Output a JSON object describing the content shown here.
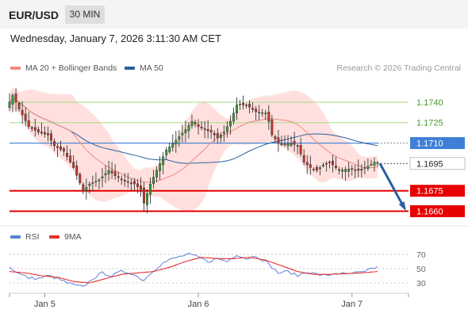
{
  "header": {
    "symbol": "EUR/USD",
    "timeframe": "30 MIN",
    "datetime": "Wednesday, January 7, 2026 3:11:30 AM CET",
    "copyright": "Research © 2026 Trading Central"
  },
  "legend": {
    "ma20": "MA 20 + Bollinger Bands",
    "ma50": "MA 50",
    "rsi": "RSI",
    "ma9": "9MA"
  },
  "colors": {
    "ma20": "#f08a80",
    "ma50": "#2a5fa0",
    "band_fill": "#ffd6d3",
    "up": "#3a9a3a",
    "down": "#c0392b",
    "green_line": "#a9d98a",
    "green_label": "#4a9a2a",
    "blue_line": "#3f7fd6",
    "red_line": "#e60000",
    "rsi": "#5b7fd6",
    "rsi_ma": "#e53030",
    "arrow": "#2a5fa0"
  },
  "chart_data": {
    "type": "candlestick",
    "ylim": [
      1.1651,
      1.1758
    ],
    "x_ticks": [
      {
        "label": "Jan 5",
        "index": 11
      },
      {
        "label": "Jan 6",
        "index": 59
      },
      {
        "label": "Jan 7",
        "index": 107
      }
    ],
    "levels": [
      {
        "value": 1.174,
        "label": "1.1740",
        "style": "green"
      },
      {
        "value": 1.1725,
        "label": "1.1725",
        "style": "green"
      },
      {
        "value": 1.171,
        "label": "1.1710",
        "style": "blue"
      },
      {
        "value": 1.1695,
        "label": "1.1695",
        "style": "current"
      },
      {
        "value": 1.1675,
        "label": "1.1675",
        "style": "red"
      },
      {
        "value": 1.166,
        "label": "1.1660",
        "style": "red"
      }
    ],
    "forecast_arrow": {
      "from": 1.1695,
      "to": 1.1662
    },
    "candle_count": 116,
    "anchors": [
      [
        0,
        1.174
      ],
      [
        1,
        1.1745
      ],
      [
        3,
        1.1735
      ],
      [
        6,
        1.1722
      ],
      [
        9,
        1.1718
      ],
      [
        12,
        1.1716
      ],
      [
        14,
        1.1708
      ],
      [
        17,
        1.1704
      ],
      [
        20,
        1.1692
      ],
      [
        23,
        1.1675
      ],
      [
        25,
        1.168
      ],
      [
        28,
        1.1683
      ],
      [
        31,
        1.169
      ],
      [
        33,
        1.1686
      ],
      [
        36,
        1.1682
      ],
      [
        39,
        1.168
      ],
      [
        41,
        1.1676
      ],
      [
        42,
        1.1666
      ],
      [
        44,
        1.168
      ],
      [
        46,
        1.169
      ],
      [
        49,
        1.1705
      ],
      [
        52,
        1.1712
      ],
      [
        55,
        1.172
      ],
      [
        57,
        1.1726
      ],
      [
        59,
        1.1722
      ],
      [
        61,
        1.172
      ],
      [
        63,
        1.1718
      ],
      [
        65,
        1.1714
      ],
      [
        67,
        1.1718
      ],
      [
        69,
        1.1726
      ],
      [
        71,
        1.1738
      ],
      [
        74,
        1.1738
      ],
      [
        77,
        1.1733
      ],
      [
        80,
        1.1732
      ],
      [
        81,
        1.1726
      ],
      [
        82,
        1.1716
      ],
      [
        84,
        1.171
      ],
      [
        86,
        1.1709
      ],
      [
        88,
        1.171
      ],
      [
        90,
        1.1708
      ],
      [
        92,
        1.1696
      ],
      [
        94,
        1.1692
      ],
      [
        96,
        1.169
      ],
      [
        98,
        1.1694
      ],
      [
        100,
        1.1696
      ],
      [
        103,
        1.169
      ],
      [
        106,
        1.1691
      ],
      [
        109,
        1.169
      ],
      [
        112,
        1.1693
      ],
      [
        114,
        1.1696
      ],
      [
        115,
        1.1695
      ]
    ],
    "rsi": {
      "ylim": [
        20,
        80
      ],
      "ticks": [
        70,
        50,
        30
      ],
      "anchors": [
        [
          0,
          52
        ],
        [
          3,
          43
        ],
        [
          6,
          37
        ],
        [
          9,
          36
        ],
        [
          12,
          40
        ],
        [
          15,
          36
        ],
        [
          18,
          30
        ],
        [
          21,
          26
        ],
        [
          23,
          24
        ],
        [
          26,
          36
        ],
        [
          29,
          44
        ],
        [
          32,
          40
        ],
        [
          35,
          46
        ],
        [
          38,
          44
        ],
        [
          41,
          36
        ],
        [
          42,
          34
        ],
        [
          45,
          48
        ],
        [
          48,
          58
        ],
        [
          51,
          64
        ],
        [
          54,
          68
        ],
        [
          56,
          70
        ],
        [
          59,
          66
        ],
        [
          62,
          60
        ],
        [
          65,
          64
        ],
        [
          68,
          60
        ],
        [
          71,
          70
        ],
        [
          74,
          64
        ],
        [
          77,
          68
        ],
        [
          80,
          60
        ],
        [
          82,
          52
        ],
        [
          84,
          44
        ],
        [
          87,
          46
        ],
        [
          90,
          40
        ],
        [
          93,
          46
        ],
        [
          96,
          42
        ],
        [
          99,
          40
        ],
        [
          102,
          44
        ],
        [
          105,
          42
        ],
        [
          108,
          44
        ],
        [
          111,
          45
        ],
        [
          113,
          50
        ],
        [
          115,
          52
        ]
      ],
      "ma_anchors": [
        [
          0,
          46
        ],
        [
          5,
          44
        ],
        [
          10,
          40
        ],
        [
          15,
          38
        ],
        [
          20,
          32
        ],
        [
          25,
          30
        ],
        [
          30,
          36
        ],
        [
          35,
          42
        ],
        [
          40,
          44
        ],
        [
          45,
          46
        ],
        [
          50,
          52
        ],
        [
          55,
          60
        ],
        [
          60,
          66
        ],
        [
          65,
          64
        ],
        [
          70,
          64
        ],
        [
          75,
          66
        ],
        [
          80,
          62
        ],
        [
          85,
          54
        ],
        [
          90,
          46
        ],
        [
          95,
          42
        ],
        [
          100,
          42
        ],
        [
          105,
          43
        ],
        [
          110,
          44
        ],
        [
          115,
          46
        ]
      ]
    }
  }
}
